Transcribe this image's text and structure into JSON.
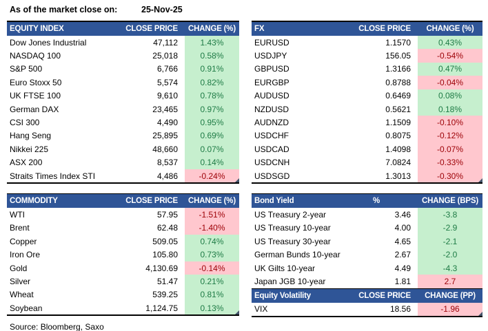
{
  "meta": {
    "as_of_label": "As of the market close on:",
    "as_of_date": "25-Nov-25",
    "source": "Source: Bloomberg, Saxo"
  },
  "colors": {
    "header_bg": "#2F5597",
    "header_text": "#FFFFFF",
    "positive_bg": "#C6EFCE",
    "positive_text": "#1E7B45",
    "negative_bg": "#FFC7CE",
    "negative_text": "#9C0006",
    "border": "#000000"
  },
  "tables": {
    "equity_index": {
      "headers": [
        "EQUITY INDEX",
        "CLOSE PRICE",
        "CHANGE (%)"
      ],
      "rows": [
        {
          "name": "Dow Jones Industrial",
          "value": "47,112",
          "change": "1.43%",
          "tone": "green"
        },
        {
          "name": "NASDAQ 100",
          "value": "25,018",
          "change": "0.58%",
          "tone": "green"
        },
        {
          "name": "S&P 500",
          "value": "6,766",
          "change": "0.91%",
          "tone": "green"
        },
        {
          "name": "Euro Stoxx 50",
          "value": "5,574",
          "change": "0.82%",
          "tone": "green"
        },
        {
          "name": "UK FTSE 100",
          "value": "9,610",
          "change": "0.78%",
          "tone": "green"
        },
        {
          "name": "German DAX",
          "value": "23,465",
          "change": "0.97%",
          "tone": "green"
        },
        {
          "name": "CSI 300",
          "value": "4,490",
          "change": "0.95%",
          "tone": "green"
        },
        {
          "name": "Hang Seng",
          "value": "25,895",
          "change": "0.69%",
          "tone": "green"
        },
        {
          "name": "Nikkei 225",
          "value": "48,660",
          "change": "0.07%",
          "tone": "green"
        },
        {
          "name": "ASX 200",
          "value": "8,537",
          "change": "0.14%",
          "tone": "green"
        },
        {
          "name": "Straits Times Index STI",
          "value": "4,486",
          "change": "-0.24%",
          "tone": "red"
        }
      ]
    },
    "fx": {
      "headers": [
        "FX",
        "CLOSE PRICE",
        "CHANGE (%)"
      ],
      "rows": [
        {
          "name": "EURUSD",
          "value": "1.1570",
          "change": "0.43%",
          "tone": "green"
        },
        {
          "name": "USDJPY",
          "value": "156.05",
          "change": "-0.54%",
          "tone": "red"
        },
        {
          "name": "GBPUSD",
          "value": "1.3166",
          "change": "0.47%",
          "tone": "green"
        },
        {
          "name": "EURGBP",
          "value": "0.8788",
          "change": "-0.04%",
          "tone": "red"
        },
        {
          "name": "AUDUSD",
          "value": "0.6469",
          "change": "0.08%",
          "tone": "green"
        },
        {
          "name": "NZDUSD",
          "value": "0.5621",
          "change": "0.18%",
          "tone": "green"
        },
        {
          "name": "AUDNZD",
          "value": "1.1509",
          "change": "-0.10%",
          "tone": "red"
        },
        {
          "name": "USDCHF",
          "value": "0.8075",
          "change": "-0.12%",
          "tone": "red"
        },
        {
          "name": "USDCAD",
          "value": "1.4098",
          "change": "-0.07%",
          "tone": "red"
        },
        {
          "name": "USDCNH",
          "value": "7.0824",
          "change": "-0.33%",
          "tone": "red"
        },
        {
          "name": "USDSGD",
          "value": "1.3013",
          "change": "-0.30%",
          "tone": "red"
        }
      ]
    },
    "commodity": {
      "headers": [
        "COMMODITY",
        "CLOSE PRICE",
        "CHANGE (%)"
      ],
      "rows": [
        {
          "name": "WTI",
          "value": "57.95",
          "change": "-1.51%",
          "tone": "red"
        },
        {
          "name": "Brent",
          "value": "62.48",
          "change": "-1.40%",
          "tone": "red"
        },
        {
          "name": "Copper",
          "value": "509.05",
          "change": "0.74%",
          "tone": "green"
        },
        {
          "name": "Iron Ore",
          "value": "105.80",
          "change": "0.73%",
          "tone": "green"
        },
        {
          "name": "Gold",
          "value": "4,130.69",
          "change": "-0.14%",
          "tone": "red"
        },
        {
          "name": "Silver",
          "value": "51.47",
          "change": "0.21%",
          "tone": "green"
        },
        {
          "name": "Wheat",
          "value": "539.25",
          "change": "0.81%",
          "tone": "green"
        },
        {
          "name": "Soybean",
          "value": "1,124.75",
          "change": "0.13%",
          "tone": "green"
        }
      ]
    },
    "bond_yield": {
      "headers": [
        "Bond Yield",
        "%",
        "CHANGE (BPS)"
      ],
      "col2_header_align": "center",
      "rows": [
        {
          "name": "US Treasury 2-year",
          "value": "3.46",
          "change": "-3.8",
          "tone": "green"
        },
        {
          "name": "US Treasury 10-year",
          "value": "4.00",
          "change": "-2.9",
          "tone": "green"
        },
        {
          "name": "US Treasury 30-year",
          "value": "4.65",
          "change": "-2.1",
          "tone": "green"
        },
        {
          "name": "German Bunds 10-year",
          "value": "2.67",
          "change": "-2.0",
          "tone": "green"
        },
        {
          "name": "UK Gilts 10-year",
          "value": "4.49",
          "change": "-4.3",
          "tone": "green"
        },
        {
          "name": "Japan JGB 10-year",
          "value": "1.81",
          "change": "2.7",
          "tone": "red"
        }
      ]
    },
    "equity_volatility": {
      "headers": [
        "Equity Volatility",
        "CLOSE PRICE",
        "CHANGE (PP)"
      ],
      "rows": [
        {
          "name": "VIX",
          "value": "18.56",
          "change": "-1.96",
          "tone": "red"
        }
      ]
    }
  }
}
